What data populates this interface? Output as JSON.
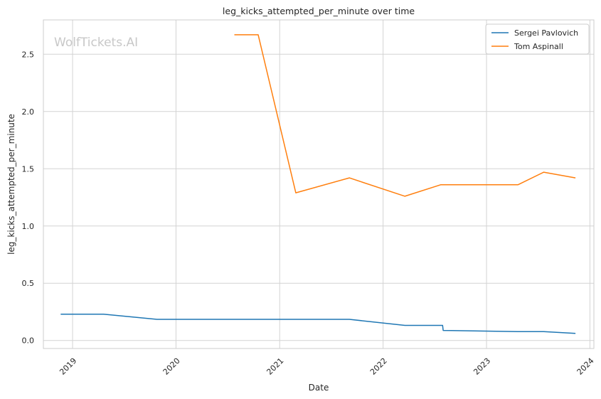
{
  "chart_data": {
    "type": "line",
    "title": "leg_kicks_attempted_per_minute over time",
    "xlabel": "Date",
    "ylabel": "leg_kicks_attempted_per_minute",
    "watermark": "WolfTickets.AI",
    "x_scale": "date",
    "xlim": [
      "2018-09-20",
      "2024-01-15"
    ],
    "ylim": [
      -0.07,
      2.8
    ],
    "x_ticks": [
      "2019-01-01",
      "2020-01-01",
      "2021-01-01",
      "2022-01-01",
      "2023-01-01",
      "2024-01-01"
    ],
    "x_tick_labels": [
      "2019",
      "2020",
      "2021",
      "2022",
      "2023",
      "2024"
    ],
    "y_ticks": [
      0.0,
      0.5,
      1.0,
      1.5,
      2.0,
      2.5
    ],
    "y_tick_labels": [
      "0.0",
      "0.5",
      "1.0",
      "1.5",
      "2.0",
      "2.5"
    ],
    "grid": true,
    "legend_position": "top-right",
    "series": [
      {
        "name": "Sergei Pavlovich",
        "color": "#1f77b4",
        "points": [
          [
            "2018-11-20",
            0.23
          ],
          [
            "2019-04-20",
            0.23
          ],
          [
            "2019-10-26",
            0.185
          ],
          [
            "2021-09-04",
            0.185
          ],
          [
            "2022-03-19",
            0.132
          ],
          [
            "2022-07-30",
            0.132
          ],
          [
            "2022-08-01",
            0.088
          ],
          [
            "2023-04-22",
            0.078
          ],
          [
            "2023-07-22",
            0.078
          ],
          [
            "2023-11-11",
            0.062
          ]
        ]
      },
      {
        "name": "Tom Aspinall",
        "color": "#ff7f0e",
        "points": [
          [
            "2020-07-25",
            2.67
          ],
          [
            "2020-10-17",
            2.67
          ],
          [
            "2021-02-27",
            1.29
          ],
          [
            "2021-09-04",
            1.42
          ],
          [
            "2022-03-19",
            1.26
          ],
          [
            "2022-07-23",
            1.36
          ],
          [
            "2023-04-22",
            1.36
          ],
          [
            "2023-07-22",
            1.47
          ],
          [
            "2023-11-11",
            1.42
          ]
        ]
      }
    ]
  }
}
